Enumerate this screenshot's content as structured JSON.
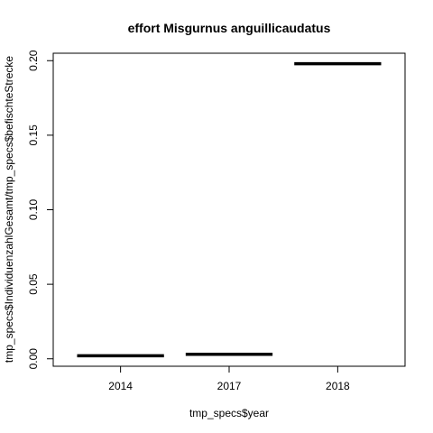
{
  "chart_data": {
    "type": "boxplot",
    "title": "effort Misgurnus anguillicaudatus",
    "xlabel": "tmp_specs$year",
    "ylabel": "tmp_specs$IndividuenzahlGesamt/tmp_specs$befischteStrecke",
    "categories": [
      "2014",
      "2017",
      "2018"
    ],
    "values": [
      0.002,
      0.003,
      0.198
    ],
    "ylim": [
      -0.005,
      0.205
    ],
    "yticks": [
      0.0,
      0.05,
      0.1,
      0.15,
      0.2
    ],
    "ytick_labels": [
      "0.00",
      "0.05",
      "0.10",
      "0.15",
      "0.20"
    ],
    "grid": false,
    "legend": "none"
  }
}
